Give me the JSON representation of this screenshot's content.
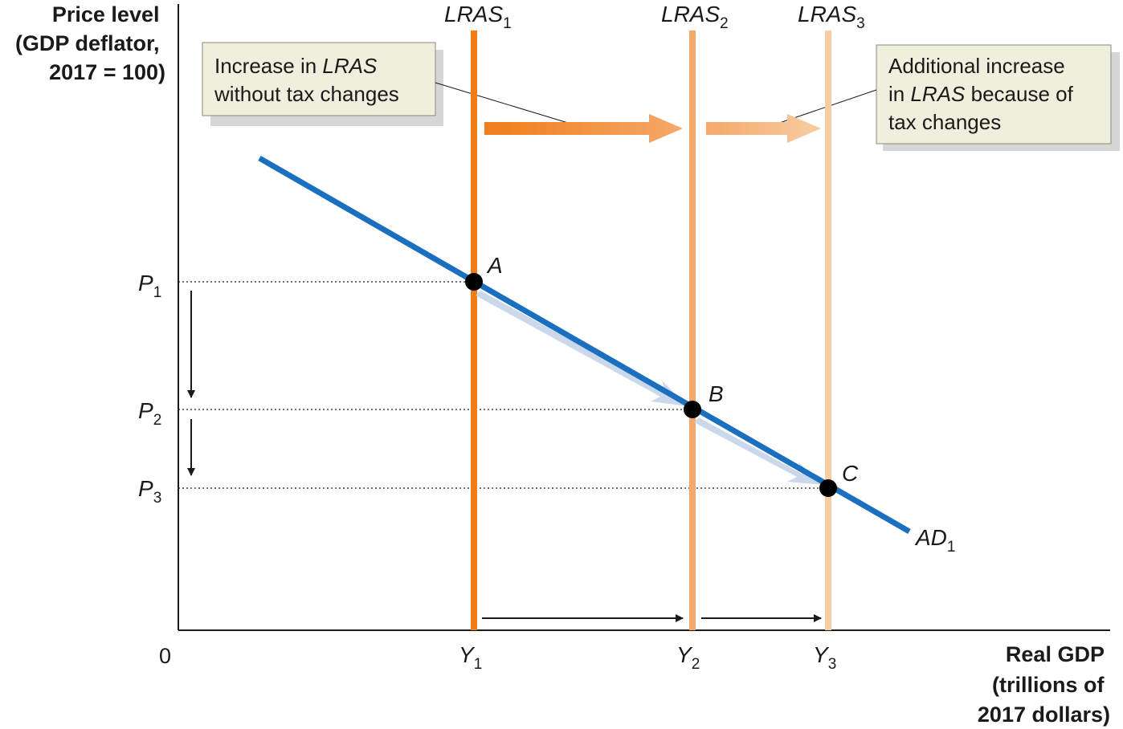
{
  "chart_data": {
    "type": "line",
    "title": "",
    "ylabel": [
      "Price level",
      "(GDP deflator,",
      "2017 = 100)"
    ],
    "xlabel": [
      "Real GDP",
      "(trillions of",
      "2017 dollars)"
    ],
    "origin_label": "0",
    "y_ticks": [
      {
        "base": "P",
        "sub": "1"
      },
      {
        "base": "P",
        "sub": "2"
      },
      {
        "base": "P",
        "sub": "3"
      }
    ],
    "x_ticks": [
      {
        "base": "Y",
        "sub": "1"
      },
      {
        "base": "Y",
        "sub": "2"
      },
      {
        "base": "Y",
        "sub": "3"
      }
    ],
    "curves": [
      {
        "name": "LRAS",
        "sub": "1",
        "type": "vertical",
        "color": "#f07d1a"
      },
      {
        "name": "LRAS",
        "sub": "2",
        "type": "vertical",
        "color": "#f4a96a"
      },
      {
        "name": "LRAS",
        "sub": "3",
        "type": "vertical",
        "color": "#f8cda3"
      },
      {
        "name": "AD",
        "sub": "1",
        "type": "downward-sloping",
        "color": "#1a6fbf"
      }
    ],
    "equilibria": [
      {
        "label": "A",
        "x": "Y1",
        "y": "P1"
      },
      {
        "label": "B",
        "x": "Y2",
        "y": "P2"
      },
      {
        "label": "C",
        "x": "Y3",
        "y": "P3"
      }
    ],
    "annotations": [
      {
        "lines": [
          [
            "Increase in ",
            "LRAS"
          ],
          [
            "without tax changes"
          ]
        ]
      },
      {
        "lines": [
          [
            "Additional increase"
          ],
          [
            "in ",
            "LRAS",
            " because of"
          ],
          [
            "tax changes"
          ]
        ]
      }
    ]
  }
}
